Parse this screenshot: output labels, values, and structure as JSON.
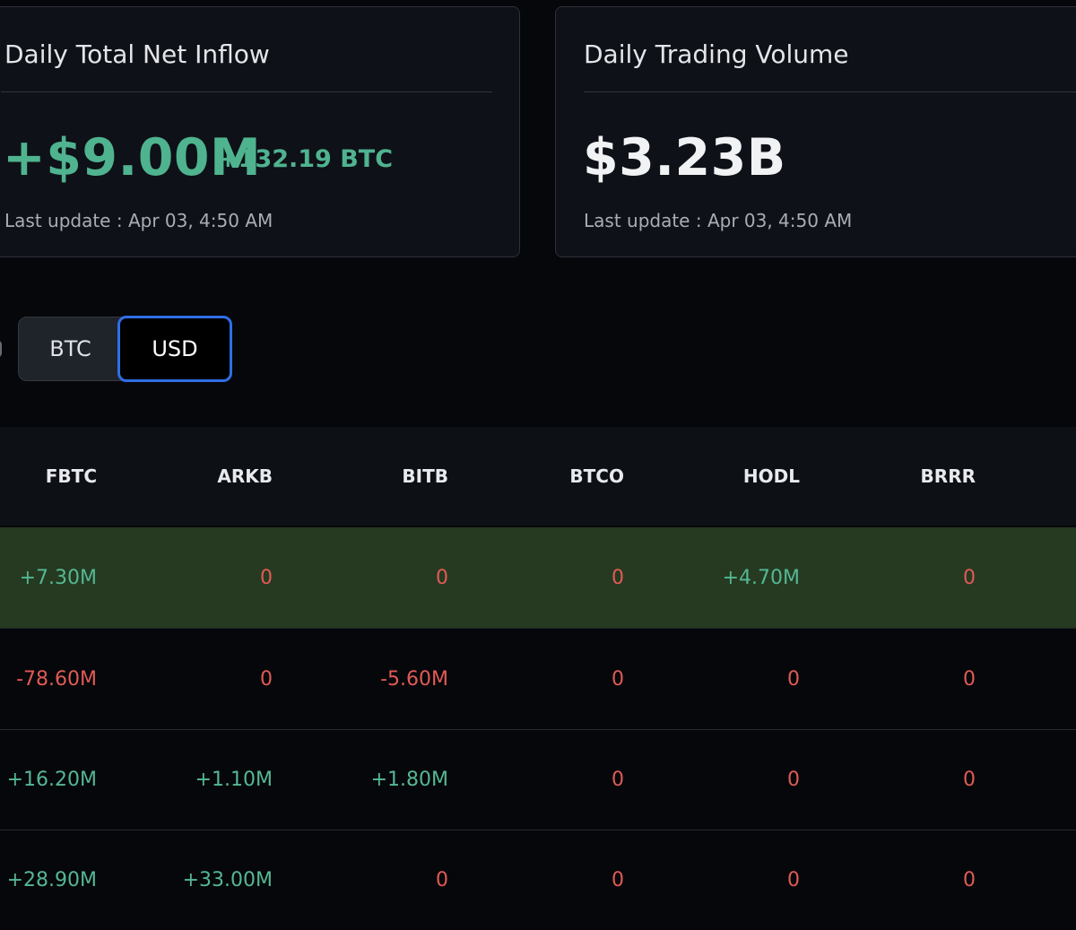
{
  "summary": {
    "inflow": {
      "title": "Daily Total Net Inflow",
      "value": "+$9.00M",
      "btc_value": "+132.19 BTC",
      "last_update": "Last update : Apr 03, 4:50 AM"
    },
    "volume": {
      "title": "Daily Trading Volume",
      "value": "$3.23B",
      "last_update": "Last update : Apr 03, 4:50 AM"
    }
  },
  "unit_toggle": {
    "options": [
      "BTC",
      "USD"
    ],
    "selected": "USD"
  },
  "table": {
    "columns": [
      "FBTC",
      "ARKB",
      "BITB",
      "BTCO",
      "HODL",
      "BRRR"
    ],
    "rows": [
      {
        "highlight": true,
        "cells": [
          "+7.30M",
          "0",
          "0",
          "0",
          "+4.70M",
          "0"
        ]
      },
      {
        "highlight": false,
        "cells": [
          "-78.60M",
          "0",
          "-5.60M",
          "0",
          "0",
          "0"
        ]
      },
      {
        "highlight": false,
        "cells": [
          "+16.20M",
          "+1.10M",
          "+1.80M",
          "0",
          "0",
          "0"
        ]
      },
      {
        "highlight": false,
        "cells": [
          "+28.90M",
          "+33.00M",
          "0",
          "0",
          "0",
          "0"
        ]
      }
    ]
  },
  "colors": {
    "positive": "#55b794",
    "negative": "#e05a56",
    "highlight_row": "#253a20",
    "selected_border": "#2f6ee6"
  }
}
